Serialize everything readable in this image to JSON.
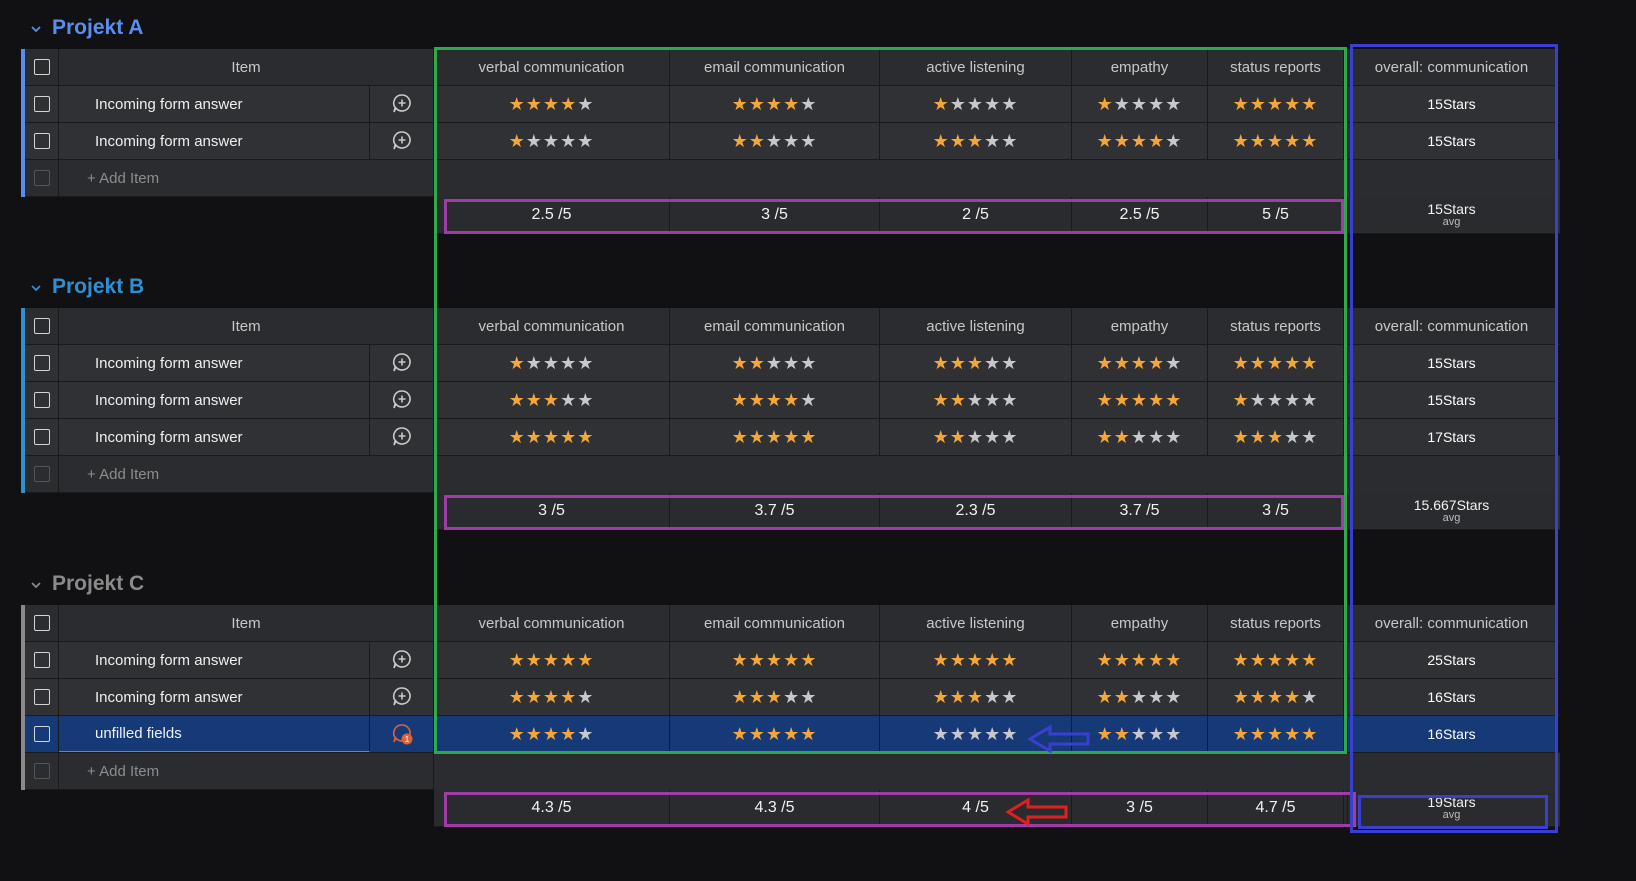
{
  "columns": {
    "item": "Item",
    "ratings": [
      "verbal communication",
      "email communication",
      "active listening",
      "empathy",
      "status reports"
    ],
    "overall": "overall: communication"
  },
  "add_item_label": "+ Add Item",
  "avg_label": "avg",
  "colors": {
    "star_on": "#f4a63a",
    "star_off": "#c8c8cc",
    "green_box": "#2faa4a",
    "purple_box": "#a03ca8",
    "blue_box": "#3a3fd0",
    "red_arrow": "#e02020"
  },
  "groups": [
    {
      "title": "Projekt A",
      "color": "#5b8def",
      "rows": [
        {
          "name": "Incoming form answer",
          "ratings": [
            4,
            4,
            1,
            1,
            5
          ],
          "overall": "15Stars",
          "selected": false,
          "updates": 0
        },
        {
          "name": "Incoming form answer",
          "ratings": [
            1,
            2,
            3,
            4,
            5
          ],
          "overall": "15Stars",
          "selected": false,
          "updates": 0
        }
      ],
      "summary": [
        "2.5 /5",
        "3 /5",
        "2 /5",
        "2.5 /5",
        "5 /5"
      ],
      "overall_summary": "15Stars"
    },
    {
      "title": "Projekt B",
      "color": "#2f8fd0",
      "rows": [
        {
          "name": "Incoming form answer",
          "ratings": [
            1,
            2,
            3,
            4,
            5
          ],
          "overall": "15Stars",
          "selected": false,
          "updates": 0
        },
        {
          "name": "Incoming form answer",
          "ratings": [
            3,
            4,
            2,
            5,
            1
          ],
          "overall": "15Stars",
          "selected": false,
          "updates": 0
        },
        {
          "name": "Incoming form answer",
          "ratings": [
            5,
            5,
            2,
            2,
            3
          ],
          "overall": "17Stars",
          "selected": false,
          "updates": 0
        }
      ],
      "summary": [
        "3 /5",
        "3.7 /5",
        "2.3 /5",
        "3.7 /5",
        "3 /5"
      ],
      "overall_summary": "15.667Stars"
    },
    {
      "title": "Projekt C",
      "color": "#8a8a8a",
      "rows": [
        {
          "name": "Incoming form answer",
          "ratings": [
            5,
            5,
            5,
            5,
            5
          ],
          "overall": "25Stars",
          "selected": false,
          "updates": 0
        },
        {
          "name": "Incoming form answer",
          "ratings": [
            4,
            3,
            3,
            2,
            4
          ],
          "overall": "16Stars",
          "selected": false,
          "updates": 0
        },
        {
          "name": "unfilled fields",
          "ratings": [
            4,
            5,
            0,
            2,
            5
          ],
          "overall": "16Stars",
          "selected": true,
          "updates": 1
        }
      ],
      "summary": [
        "4.3 /5",
        "4.3 /5",
        "4 /5",
        "3 /5",
        "4.7 /5"
      ],
      "overall_summary": "19Stars"
    }
  ]
}
